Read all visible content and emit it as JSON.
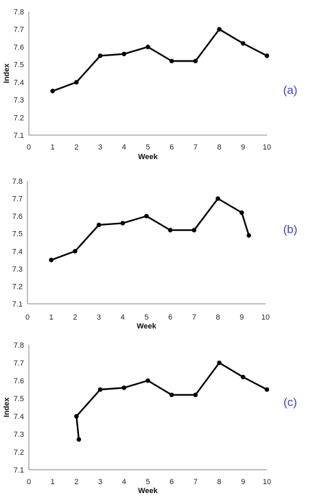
{
  "chart_data": [
    {
      "type": "line",
      "panel_label": "(a)",
      "xlabel": "Week",
      "ylabel": "Index",
      "xlim": [
        0,
        10
      ],
      "ylim": [
        7.1,
        7.8
      ],
      "xticks": [
        "0",
        "1",
        "2",
        "3",
        "4",
        "5",
        "6",
        "7",
        "8",
        "9",
        "10"
      ],
      "yticks": [
        "7.1",
        "7.2",
        "7.3",
        "7.4",
        "7.5",
        "7.6",
        "7.7",
        "7.8"
      ],
      "grid": false,
      "legend": "none",
      "series": [
        {
          "x": [
            1,
            2,
            3,
            4,
            5,
            6,
            7,
            8,
            9,
            10
          ],
          "y": [
            7.35,
            7.4,
            7.55,
            7.56,
            7.6,
            7.52,
            7.52,
            7.7,
            7.62,
            7.55
          ]
        }
      ]
    },
    {
      "type": "line",
      "panel_label": "(b)",
      "xlabel": "Week",
      "ylabel": "",
      "xlim": [
        0,
        10
      ],
      "ylim": [
        7.1,
        7.8
      ],
      "xticks": [
        "0",
        "1",
        "2",
        "3",
        "4",
        "5",
        "6",
        "7",
        "8",
        "9",
        "10"
      ],
      "yticks": [
        "7.1",
        "7.2",
        "7.3",
        "7.4",
        "7.5",
        "7.6",
        "7.7",
        "7.8"
      ],
      "grid": false,
      "legend": "none",
      "series": [
        {
          "x": [
            1,
            2,
            3,
            4,
            5,
            6,
            7,
            8,
            9,
            9.3
          ],
          "y": [
            7.35,
            7.4,
            7.55,
            7.56,
            7.6,
            7.52,
            7.52,
            7.7,
            7.62,
            7.49
          ]
        }
      ]
    },
    {
      "type": "line",
      "panel_label": "(c)",
      "xlabel": "Week",
      "ylabel": "Index",
      "xlim": [
        0,
        10
      ],
      "ylim": [
        7.1,
        7.8
      ],
      "xticks": [
        "0",
        "1",
        "2",
        "3",
        "4",
        "5",
        "6",
        "7",
        "8",
        "9",
        "10"
      ],
      "yticks": [
        "7.1",
        "7.2",
        "7.3",
        "7.4",
        "7.5",
        "7.6",
        "7.7",
        "7.8"
      ],
      "grid": false,
      "legend": "none",
      "series": [
        {
          "x": [
            2.1,
            2,
            3,
            4,
            5,
            6,
            7,
            8,
            9,
            10
          ],
          "y": [
            7.27,
            7.4,
            7.55,
            7.56,
            7.6,
            7.52,
            7.52,
            7.7,
            7.62,
            7.55
          ]
        }
      ]
    }
  ]
}
